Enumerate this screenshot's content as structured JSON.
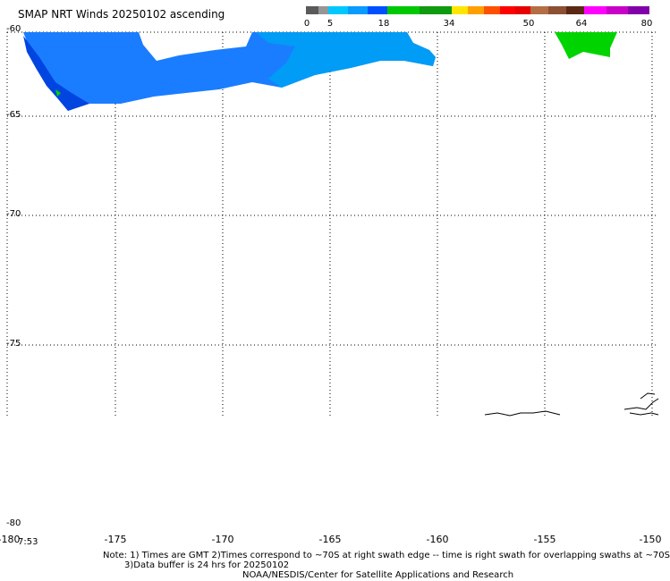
{
  "title": "SMAP NRT Winds 20250102 ascending",
  "colorbar": {
    "segments": [
      {
        "color": "#5a5a5a"
      },
      {
        "color": "#969696"
      },
      {
        "color": "#00c8ff"
      },
      {
        "color": "#0a9bff"
      },
      {
        "color": "#0050ff"
      },
      {
        "color": "#00c800"
      },
      {
        "color": "#0f9b0f"
      },
      {
        "color": "#ffe600"
      },
      {
        "color": "#ffa000"
      },
      {
        "color": "#ff5000"
      },
      {
        "color": "#ff0000"
      },
      {
        "color": "#e60000"
      },
      {
        "color": "#b46e46"
      },
      {
        "color": "#8c5032"
      },
      {
        "color": "#5a2814"
      },
      {
        "color": "#ff00ff"
      },
      {
        "color": "#c800c8"
      },
      {
        "color": "#8200aa"
      }
    ],
    "ticks": [
      "0",
      "5",
      "18",
      "34",
      "50",
      "64",
      "80"
    ]
  },
  "map": {
    "lat_labels": [
      "-60",
      "-65",
      "-70",
      "-75",
      "-80"
    ],
    "lon_labels": [
      "-180",
      "-175",
      "-170",
      "-165",
      "-160",
      "-155",
      "-150"
    ],
    "time_label": "7:53",
    "swath_colors": {
      "primary": "#1a7dff",
      "secondary": "#009cf5",
      "dark": "#0045e0",
      "green": "#00d400"
    }
  },
  "notes": {
    "line1": "Note: 1) Times are GMT 2)Times correspond to ~70S at right swath edge -- time is right swath for overlapping swaths at ~70S",
    "line2": "3)Data buffer is 24 hrs for 20250102",
    "credit": "NOAA/NESDIS/Center for Satellite Applications and Research"
  }
}
